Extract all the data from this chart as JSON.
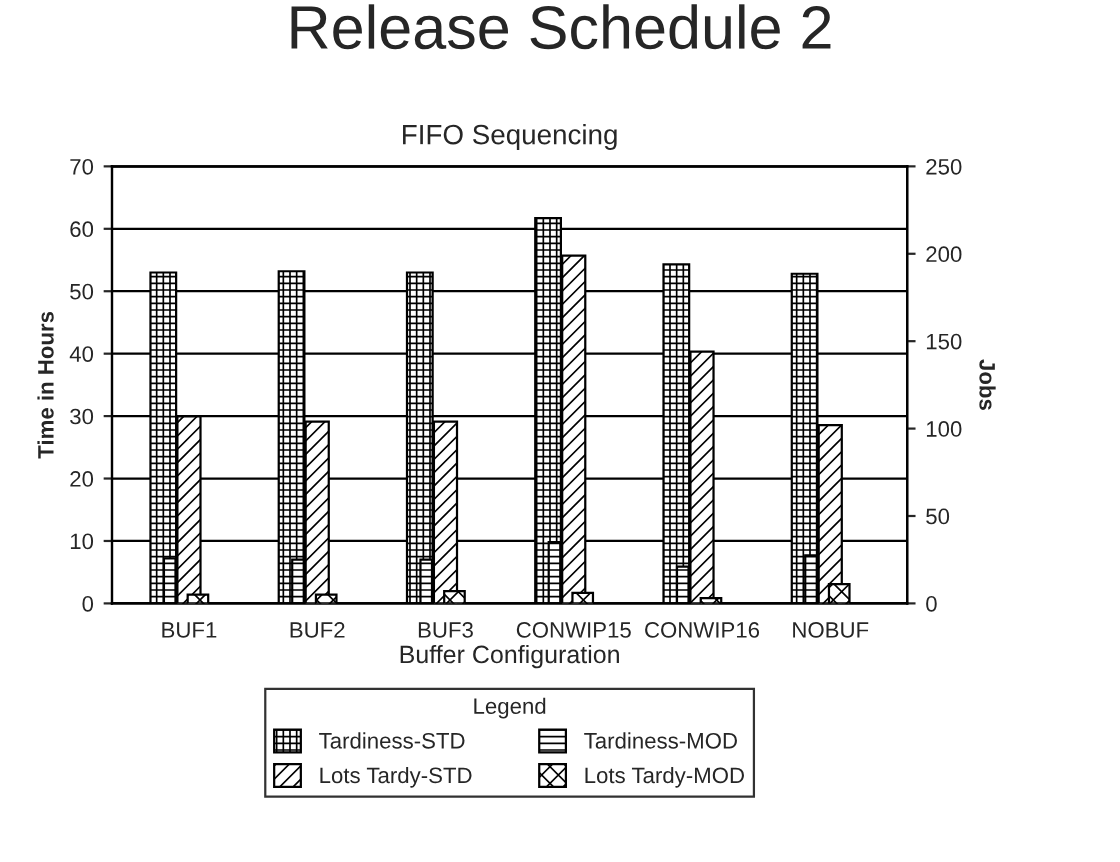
{
  "chart_data": {
    "type": "bar",
    "title": "Release Schedule 2",
    "subtitle": "FIFO Sequencing",
    "xlabel": "Buffer Configuration",
    "ylabel": "Time in Hours",
    "y2label": "Jobs",
    "legend_title": "Legend",
    "categories": [
      "BUF1",
      "BUF2",
      "BUF3",
      "CONWIP15",
      "CONWIP16",
      "NOBUF"
    ],
    "series": [
      {
        "name": "Tardiness-STD",
        "color": "#000000",
        "values": [
          53,
          53.2,
          53,
          61.7,
          54.3,
          52.8
        ]
      },
      {
        "name": "Tardiness-MOD",
        "color": "#000000",
        "values": [
          7.2,
          7,
          7,
          9.8,
          5.9,
          7.7
        ]
      },
      {
        "name": "Lots Tardy-STD",
        "color": "#000000",
        "axis": "y2",
        "values": [
          107,
          104,
          104,
          199,
          144,
          102
        ]
      },
      {
        "name": "Lots Tardy-MOD",
        "color": "#000000",
        "axis": "y2",
        "values": [
          5,
          5,
          7,
          6,
          3,
          11
        ]
      }
    ],
    "ylim": [
      0,
      70
    ],
    "yticks": [
      0,
      10,
      20,
      30,
      40,
      50,
      60,
      70
    ],
    "y2lim": [
      0,
      250
    ],
    "y2ticks": [
      0,
      50,
      100,
      150,
      200,
      250
    ],
    "grid": "y",
    "legend": "bottom"
  }
}
